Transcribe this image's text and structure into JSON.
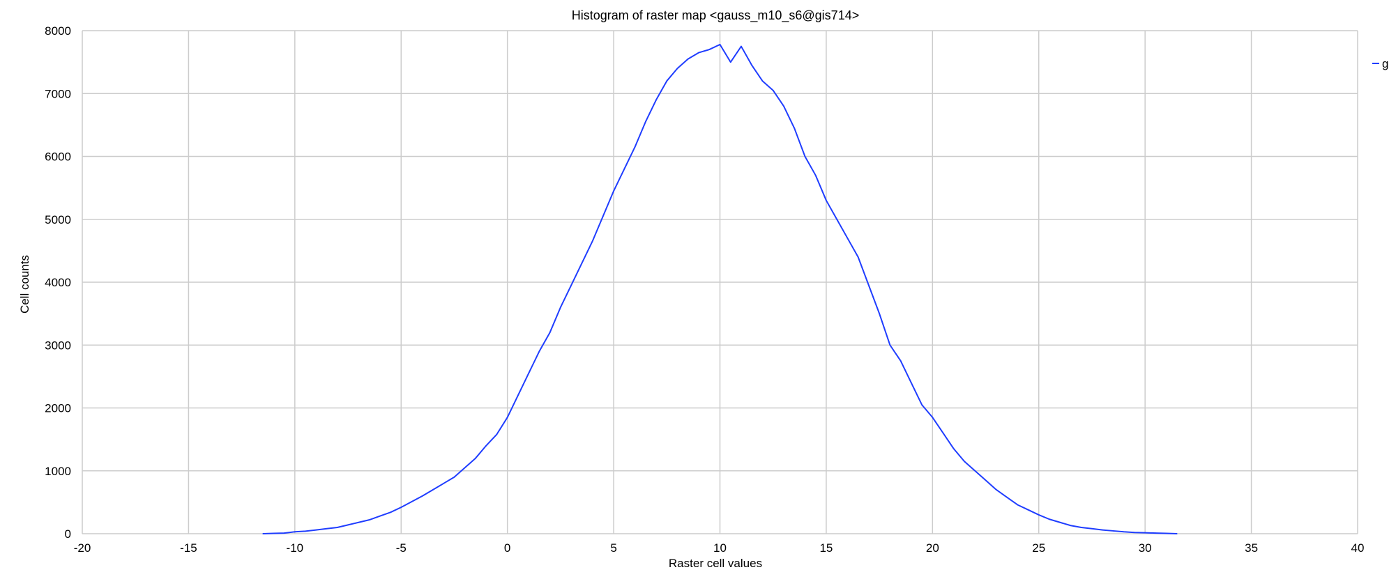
{
  "chart_data": {
    "type": "line",
    "title": "Histogram of raster map <gauss_m10_s6@gis714>",
    "xlabel": "Raster cell values",
    "ylabel": "Cell counts",
    "xlim": [
      -20,
      40
    ],
    "ylim": [
      0,
      8000
    ],
    "x_ticks": [
      -20,
      -15,
      -10,
      -5,
      0,
      5,
      10,
      15,
      20,
      25,
      30,
      35,
      40
    ],
    "y_ticks": [
      0,
      1000,
      2000,
      3000,
      4000,
      5000,
      6000,
      7000,
      8000
    ],
    "x_tick_labels": [
      "-20",
      "-15",
      "-10",
      "-5",
      "0",
      "5",
      "10",
      "15",
      "20",
      "25",
      "30",
      "35",
      "40"
    ],
    "y_tick_labels": [
      "0",
      "1000",
      "2000",
      "3000",
      "4000",
      "5000",
      "6000",
      "7000",
      "8000"
    ],
    "grid": true,
    "legend_position": "top-right",
    "legend_text": "g",
    "series_color": "#1f3dff",
    "grid_color": "#cccccc",
    "series": [
      {
        "x": [
          -11.5,
          -11,
          -10.5,
          -10,
          -9.5,
          -9,
          -8.5,
          -8,
          -7.5,
          -7,
          -6.5,
          -6,
          -5.5,
          -5,
          -4.5,
          -4,
          -3.5,
          -3,
          -2.5,
          -2,
          -1.5,
          -1,
          -0.5,
          0,
          0.5,
          1,
          1.5,
          2,
          2.5,
          3,
          3.5,
          4,
          4.5,
          5,
          5.5,
          6,
          6.5,
          7,
          7.5,
          8,
          8.5,
          9,
          9.5,
          10,
          10.5,
          11,
          11.5,
          12,
          12.5,
          13,
          13.5,
          14,
          14.5,
          15,
          15.5,
          16,
          16.5,
          17,
          17.5,
          18,
          18.5,
          19,
          19.5,
          20,
          20.5,
          21,
          21.5,
          22,
          22.5,
          23,
          23.5,
          24,
          24.5,
          25,
          25.5,
          26,
          26.5,
          27,
          27.5,
          28,
          28.5,
          29,
          29.5,
          30,
          30.5,
          31,
          31.5
        ],
        "values": [
          0,
          5,
          10,
          30,
          40,
          60,
          80,
          100,
          140,
          180,
          220,
          280,
          340,
          420,
          510,
          600,
          700,
          800,
          900,
          1050,
          1200,
          1400,
          1580,
          1850,
          2200,
          2550,
          2900,
          3200,
          3600,
          3950,
          4300,
          4650,
          5050,
          5450,
          5800,
          6150,
          6550,
          6900,
          7200,
          7400,
          7550,
          7650,
          7700,
          7780,
          7500,
          7750,
          7450,
          7200,
          7050,
          6800,
          6450,
          6000,
          5700,
          5300,
          5000,
          4700,
          4400,
          3950,
          3500,
          3000,
          2750,
          2400,
          2050,
          1850,
          1600,
          1350,
          1150,
          1000,
          850,
          700,
          580,
          460,
          380,
          300,
          230,
          180,
          130,
          100,
          80,
          60,
          45,
          30,
          20,
          15,
          10,
          5,
          0
        ]
      }
    ]
  }
}
